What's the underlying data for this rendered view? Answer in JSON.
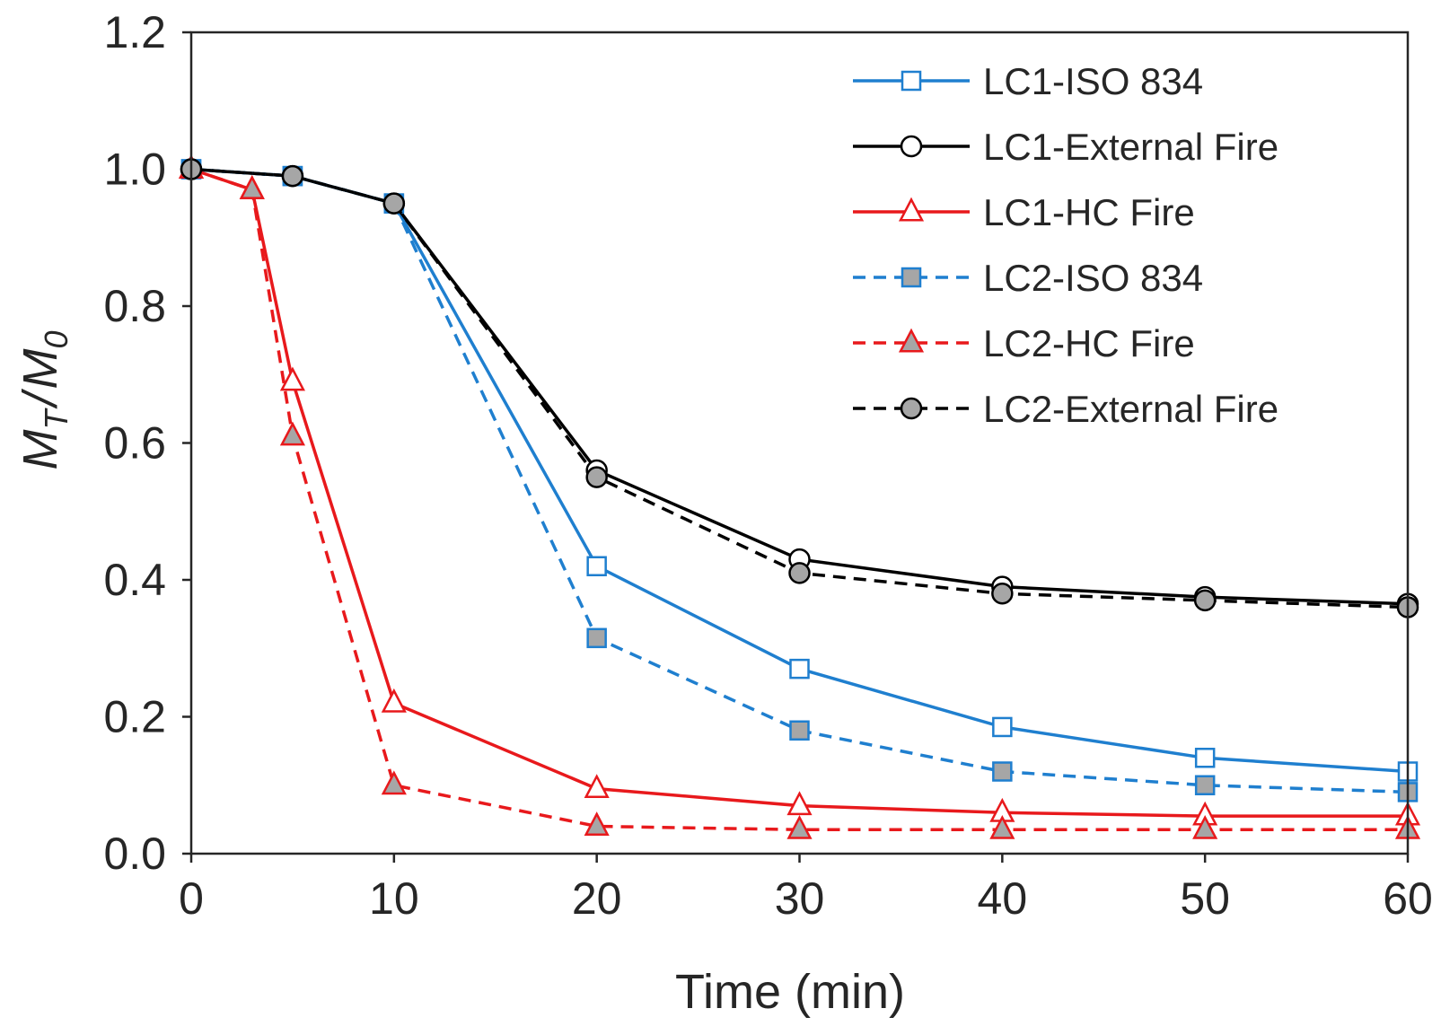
{
  "chart_data": {
    "type": "line",
    "title": "",
    "xlabel": "Time (min)",
    "ylabel": {
      "base": "M",
      "sub1": "T",
      "sep": "/",
      "base2": "M",
      "sub2": "0"
    },
    "xlim": [
      0,
      60
    ],
    "ylim": [
      0,
      1.2
    ],
    "xticks": [
      0,
      10,
      20,
      30,
      40,
      50,
      60
    ],
    "yticks": [
      0.0,
      0.2,
      0.4,
      0.6,
      0.8,
      1.0,
      1.2
    ],
    "yticks_text": [
      "0.0",
      "0.2",
      "0.4",
      "0.6",
      "0.8",
      "1.0",
      "1.2"
    ],
    "grid": false,
    "legend_position": "top-right",
    "series": [
      {
        "name": "LC1-ISO 834",
        "color": "#1f7fcf",
        "dash": "solid",
        "marker": "square",
        "marker_fill": "#ffffff",
        "x": [
          0,
          5,
          10,
          20,
          30,
          40,
          50,
          60
        ],
        "y": [
          1.0,
          0.99,
          0.95,
          0.42,
          0.27,
          0.185,
          0.14,
          0.12
        ]
      },
      {
        "name": "LC1-External Fire",
        "color": "#000000",
        "dash": "solid",
        "marker": "circle",
        "marker_fill": "#ffffff",
        "x": [
          0,
          5,
          10,
          20,
          30,
          40,
          50,
          60
        ],
        "y": [
          1.0,
          0.99,
          0.95,
          0.56,
          0.43,
          0.39,
          0.375,
          0.365
        ]
      },
      {
        "name": "LC1-HC Fire",
        "color": "#e8191c",
        "dash": "solid",
        "marker": "triangle",
        "marker_fill": "#ffffff",
        "x": [
          0,
          3,
          5,
          10,
          20,
          30,
          40,
          50,
          60
        ],
        "y": [
          1.0,
          0.97,
          0.69,
          0.22,
          0.095,
          0.07,
          0.06,
          0.055,
          0.055
        ]
      },
      {
        "name": "LC2-ISO 834",
        "color": "#1f7fcf",
        "dash": "dashed",
        "marker": "square",
        "marker_fill": "#a6a6a6",
        "x": [
          0,
          5,
          10,
          20,
          30,
          40,
          50,
          60
        ],
        "y": [
          1.0,
          0.99,
          0.95,
          0.315,
          0.18,
          0.12,
          0.1,
          0.09
        ]
      },
      {
        "name": "LC2-HC Fire",
        "color": "#e8191c",
        "dash": "dashed",
        "marker": "triangle",
        "marker_fill": "#a6a6a6",
        "x": [
          0,
          3,
          5,
          10,
          20,
          30,
          40,
          50,
          60
        ],
        "y": [
          1.0,
          0.97,
          0.61,
          0.1,
          0.04,
          0.035,
          0.035,
          0.035,
          0.035
        ]
      },
      {
        "name": "LC2-External Fire",
        "color": "#000000",
        "dash": "dashed",
        "marker": "circle",
        "marker_fill": "#a6a6a6",
        "x": [
          0,
          5,
          10,
          20,
          30,
          40,
          50,
          60
        ],
        "y": [
          1.0,
          0.99,
          0.95,
          0.55,
          0.41,
          0.38,
          0.37,
          0.36
        ]
      }
    ]
  }
}
